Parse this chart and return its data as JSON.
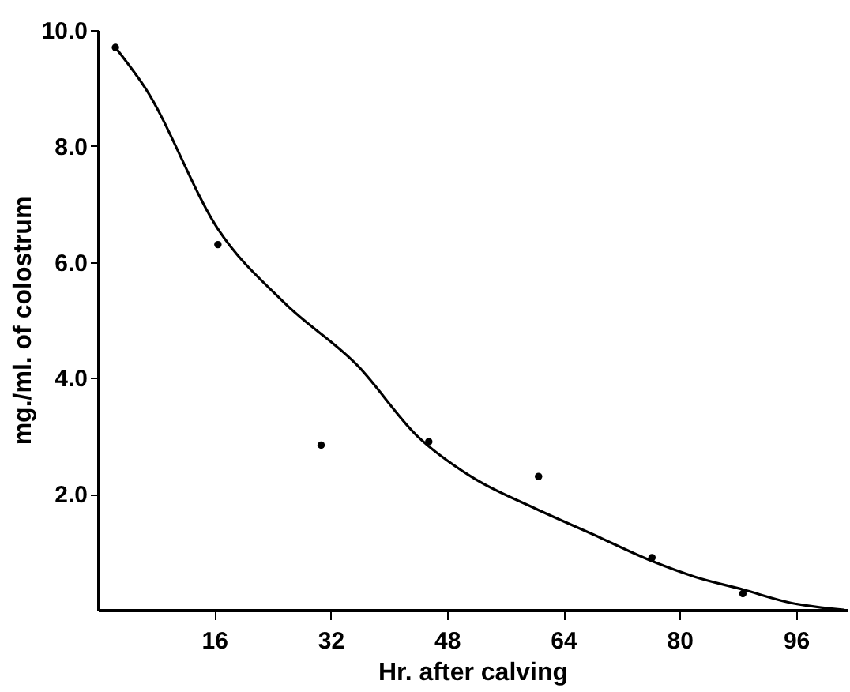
{
  "chart_data": {
    "type": "scatter",
    "xlabel": "Hr. after calving",
    "ylabel": "mg./ml. of colostrum",
    "xlim": [
      0,
      103
    ],
    "ylim": [
      0,
      10
    ],
    "xticks": [
      16,
      32,
      48,
      64,
      80,
      96
    ],
    "yticks": [
      {
        "value": 2,
        "label": "2.0"
      },
      {
        "value": 4,
        "label": "4.0"
      },
      {
        "value": 6,
        "label": "6.0"
      },
      {
        "value": 8,
        "label": "8.0"
      },
      {
        "value": 10,
        "label": "10.0"
      }
    ],
    "grid": false,
    "marker": "circle",
    "series": [
      {
        "color": "#000000",
        "x": [
          2.4,
          16.5,
          30.7,
          45.5,
          60.6,
          76.2,
          88.7
        ],
        "values": [
          9.7,
          6.3,
          2.84,
          2.9,
          2.3,
          0.9,
          0.28
        ]
      },
      {
        "type": "line",
        "color": "#000000",
        "marker": "none",
        "line_style": "solid",
        "x": [
          2.4,
          6.5,
          16.5,
          25.6,
          35.8,
          43.9,
          51.3,
          60.1,
          68.1,
          76.2,
          82.1,
          88.7,
          95.3,
          102.6
        ],
        "values": [
          9.7,
          9.0,
          6.57,
          5.3,
          4.2,
          3.0,
          2.3,
          1.75,
          1.3,
          0.84,
          0.57,
          0.35,
          0.12,
          0.0
        ]
      }
    ]
  }
}
